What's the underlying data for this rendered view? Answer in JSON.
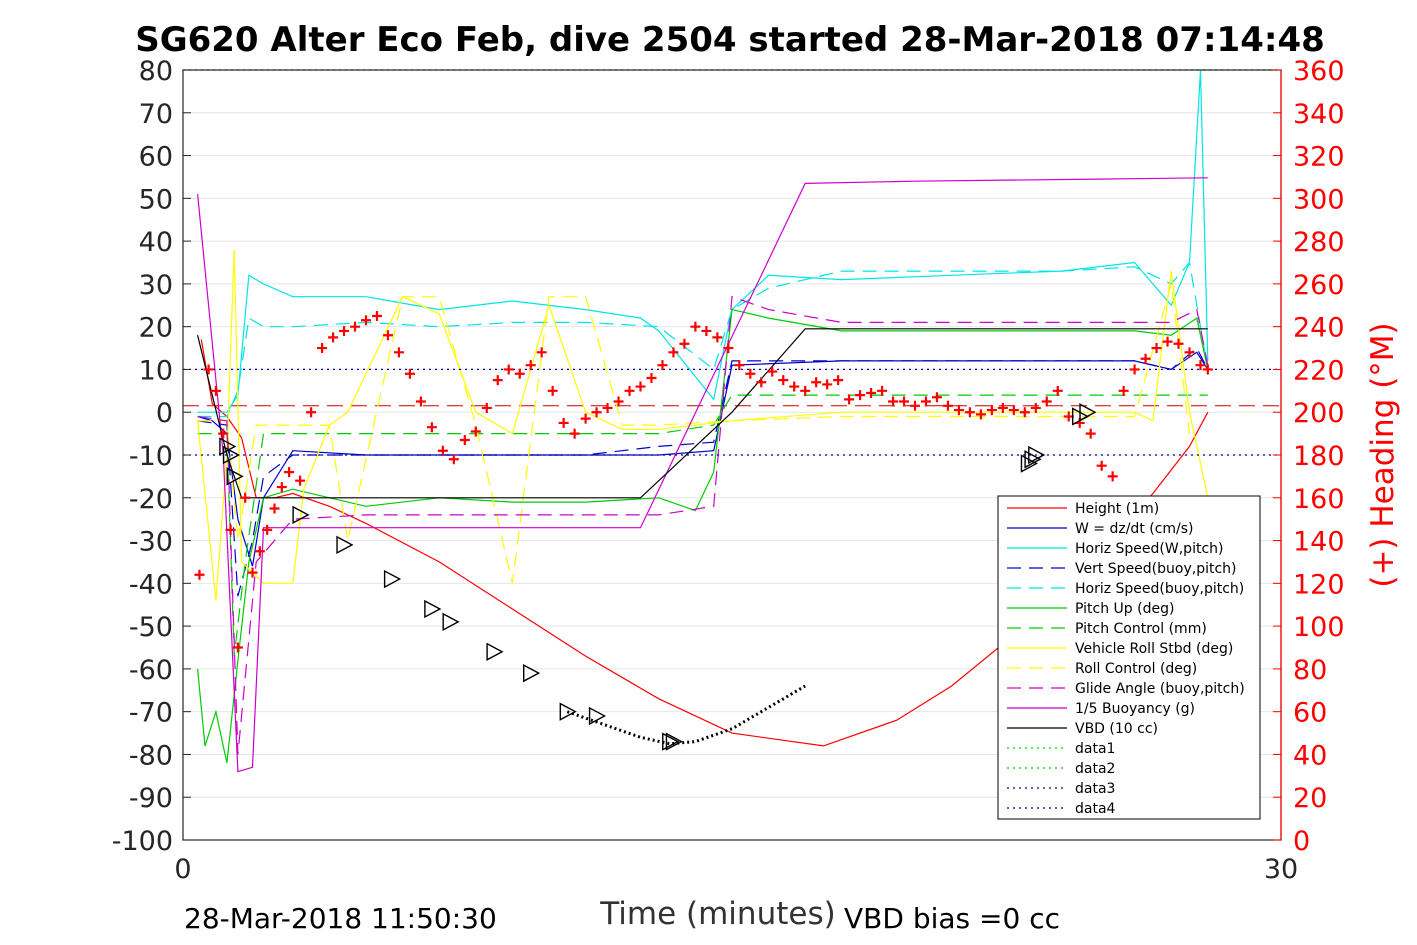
{
  "chart_data": {
    "type": "line",
    "title": "SG620 Alter Eco Feb, dive 2504 started 28-Mar-2018 07:14:48",
    "xlabel": "Time (minutes)",
    "ylabel": "",
    "ylabel_right": "(+) Heading (°M)",
    "xlim": [
      0,
      30
    ],
    "ylim": [
      -100,
      80
    ],
    "ylim_right": [
      0,
      360
    ],
    "x_ticks": [
      "0",
      "30"
    ],
    "y_ticks": [
      "80",
      "70",
      "60",
      "50",
      "40",
      "30",
      "20",
      "10",
      "0",
      "-10",
      "-20",
      "-30",
      "-40",
      "-50",
      "-60",
      "-70",
      "-80",
      "-90",
      "-100"
    ],
    "y_right_ticks": [
      "360",
      "340",
      "320",
      "300",
      "280",
      "260",
      "240",
      "220",
      "200",
      "180",
      "160",
      "140",
      "120",
      "100",
      "80",
      "60",
      "40",
      "20",
      "0"
    ],
    "grid": true,
    "legend_position": "lower-right",
    "footer_left": "28-Mar-2018 11:50:30",
    "footer_right": "VBD bias =0 cc",
    "colors": {
      "heading": "#ff0000",
      "right_axis": "#ff0000"
    },
    "series": [
      {
        "name": "Height (1m)",
        "color": "#ff0000",
        "style": "solid",
        "x": [
          0.5,
          0.8,
          1.2,
          1.6,
          2.0,
          2.5,
          3.0,
          4.0,
          5.0,
          7.0,
          9.0,
          11.0,
          13.0,
          15.0,
          17.5,
          19.5,
          21.0,
          23.0,
          25.0,
          26.5,
          27.5,
          28.0
        ],
        "y": [
          17,
          2,
          -1,
          -6,
          -20,
          -20,
          -19,
          -22,
          -26,
          -35,
          -46,
          -57,
          -67,
          -75,
          -78,
          -72,
          -64,
          -50,
          -33,
          -19,
          -8,
          0
        ]
      },
      {
        "name": "W = dz/dt (cm/s)",
        "color": "#0000cc",
        "style": "solid",
        "x": [
          0.4,
          0.8,
          1.2,
          1.5,
          1.9,
          2.2,
          3.0,
          5.0,
          7.0,
          9.0,
          11.0,
          13.0,
          14.5,
          15.0,
          18.0,
          21.0,
          24.0,
          26.0,
          27.0,
          27.7,
          28.0
        ],
        "y": [
          -1,
          -2,
          -5,
          -25,
          -36,
          -20,
          -9,
          -10,
          -10,
          -10,
          -10,
          -10,
          -9,
          11,
          12,
          12,
          12,
          12,
          10,
          14,
          10
        ]
      },
      {
        "name": "Horiz Speed(W,pitch)",
        "color": "#00e5e5",
        "style": "solid",
        "x": [
          0.4,
          1.2,
          1.5,
          1.8,
          2.2,
          3.0,
          5.0,
          7.0,
          9.0,
          11.0,
          12.5,
          13.0,
          14.5,
          15.0,
          16.0,
          18.0,
          21.0,
          24.0,
          26.0,
          27.0,
          27.5,
          27.8,
          28.0
        ],
        "y": [
          0,
          0,
          4,
          32,
          30,
          27,
          27,
          24,
          26,
          24,
          22,
          19,
          3,
          24,
          32,
          31,
          32,
          33,
          35,
          25,
          35,
          80,
          12
        ]
      },
      {
        "name": "Vert Speed(buoy,pitch)",
        "color": "#0000cc",
        "style": "dashed",
        "x": [
          0.4,
          1.2,
          1.5,
          1.9,
          2.2,
          3.0,
          5.0,
          7.0,
          9.0,
          11.0,
          13.0,
          14.5,
          15.0,
          18.0,
          21.0,
          24.0,
          26.0,
          27.0,
          27.7,
          28.0
        ],
        "y": [
          -2,
          -3,
          -43,
          -30,
          -15,
          -10,
          -10,
          -10,
          -10,
          -10,
          -8,
          -7,
          12,
          12,
          12,
          12,
          12,
          10,
          15,
          10
        ]
      },
      {
        "name": "Horiz Speed(buoy,pitch)",
        "color": "#00e5e5",
        "style": "dashed",
        "x": [
          0.4,
          1.2,
          1.5,
          1.8,
          2.2,
          3.0,
          5.0,
          7.0,
          9.0,
          11.0,
          13.0,
          14.5,
          15.0,
          16.0,
          18.0,
          21.0,
          24.0,
          26.0,
          27.0,
          27.5,
          28.0
        ],
        "y": [
          -1,
          -1,
          5,
          22,
          20,
          20,
          21,
          20,
          21,
          21,
          20,
          10,
          24,
          29,
          33,
          33,
          33,
          34,
          30,
          35,
          10
        ]
      },
      {
        "name": "Pitch Up (deg)",
        "color": "#00cc00",
        "style": "solid",
        "x": [
          0.4,
          0.6,
          0.9,
          1.2,
          1.5,
          1.8,
          2.2,
          3.0,
          5.0,
          7.0,
          9.0,
          11.0,
          13.0,
          14.0,
          14.5,
          15.0,
          16.0,
          18.0,
          21.0,
          24.0,
          26.0,
          27.0,
          27.7,
          28.0
        ],
        "y": [
          -60,
          -78,
          -70,
          -82,
          -58,
          -35,
          -20,
          -18,
          -22,
          -20,
          -21,
          -21,
          -20,
          -23,
          -14,
          24,
          22,
          19,
          19,
          19,
          19,
          18,
          22,
          10
        ]
      },
      {
        "name": "Pitch Control (mm)",
        "color": "#00cc00",
        "style": "dashed",
        "x": [
          0.4,
          1.2,
          1.4,
          1.7,
          2.2,
          3.0,
          5.0,
          7.0,
          9.0,
          11.0,
          13.0,
          14.5,
          15.0,
          18.0,
          21.0,
          24.0,
          26.0,
          27.0,
          28.0
        ],
        "y": [
          -5,
          -5,
          -57,
          -35,
          -5,
          -5,
          -5,
          -5,
          -5,
          -5,
          -5,
          -3,
          4,
          4,
          4,
          4,
          4,
          4,
          4
        ]
      },
      {
        "name": "Vehicle Roll Stbd (deg)",
        "color": "#ffff00",
        "style": "solid",
        "x": [
          0.4,
          0.9,
          1.2,
          1.4,
          1.6,
          2.2,
          3.0,
          3.3,
          4.0,
          4.5,
          6.0,
          7.0,
          8.0,
          9.0,
          10.0,
          11.0,
          12.0,
          13.0,
          15.0,
          18.0,
          21.0,
          24.0,
          26.0,
          26.5,
          27.0,
          27.5,
          28.0
        ],
        "y": [
          -2,
          -44,
          -10,
          38,
          -35,
          -40,
          -40,
          -18,
          -3,
          0,
          27,
          23,
          0,
          -5,
          25,
          0,
          -4,
          -4,
          -2,
          0,
          0,
          0,
          0,
          -2,
          33,
          0,
          -20
        ]
      },
      {
        "name": "Roll Control (deg)",
        "color": "#ffff00",
        "style": "dashed",
        "x": [
          0.4,
          1.2,
          1.5,
          2.0,
          3.0,
          4.0,
          4.5,
          6.0,
          7.0,
          8.0,
          9.0,
          10.0,
          11.0,
          12.0,
          13.0,
          15.0,
          18.0,
          21.0,
          24.0,
          26.0,
          27.0,
          27.5
        ],
        "y": [
          -2,
          -2,
          -30,
          -3,
          -3,
          -3,
          -30,
          27,
          27,
          -3,
          -40,
          27,
          27,
          -3,
          -3,
          -2,
          -1,
          -1,
          -1,
          -1,
          30,
          -5
        ]
      },
      {
        "name": "Glide Angle (buoy,pitch)",
        "color": "#cc00cc",
        "style": "dashed",
        "x": [
          0.4,
          1.2,
          1.5,
          2.0,
          3.0,
          5.0,
          7.0,
          9.0,
          11.0,
          13.0,
          14.5,
          15.0,
          16.0,
          18.0,
          21.0,
          24.0,
          26.0,
          27.0,
          27.7,
          28.0
        ],
        "y": [
          -1,
          -2,
          -80,
          -35,
          -25,
          -24,
          -24,
          -24,
          -24,
          -24,
          -22,
          27,
          24,
          21,
          21,
          21,
          21,
          21,
          24,
          11
        ]
      },
      {
        "name": "1/5 Buoyancy (g)",
        "color": "#cc00cc",
        "style": "solid",
        "x": [
          0.4,
          1.1,
          1.5,
          1.9,
          2.2,
          3.0,
          11.0,
          12.5,
          17.0,
          20.0,
          25.0,
          28.0
        ],
        "y": [
          51,
          -10,
          -84,
          -83,
          -27,
          -27,
          -27,
          -27,
          53.5,
          54,
          54.5,
          54.8
        ]
      },
      {
        "name": "VBD (10 cc)",
        "color": "#000000",
        "style": "solid",
        "x": [
          0.4,
          1.2,
          1.6,
          2.0,
          3.0,
          11.0,
          12.5,
          13.5,
          15.0,
          17.0,
          20.0,
          25.0,
          28.0
        ],
        "y": [
          18,
          -10,
          -20,
          -20,
          -20,
          -20,
          -20,
          -12,
          0,
          19.5,
          19.5,
          19.5,
          19.5
        ]
      },
      {
        "name": "data1",
        "color": "#00cc00",
        "style": "dotted",
        "x": [
          0,
          30
        ],
        "y": [
          80,
          80
        ]
      },
      {
        "name": "data2",
        "color": "#00cc00",
        "style": "dotted",
        "x": [
          0,
          30
        ],
        "y": [
          80,
          80
        ]
      },
      {
        "name": "data3",
        "color": "#000099",
        "style": "dotted",
        "x": [
          0,
          30
        ],
        "y": [
          10,
          10
        ]
      },
      {
        "name": "data4",
        "color": "#000099",
        "style": "dotted",
        "x": [
          0,
          30
        ],
        "y": [
          -10,
          -10
        ]
      }
    ],
    "reference_line": {
      "color": "#cc0000",
      "style": "dashed",
      "y": 1.5
    },
    "overlay": {
      "color": "#000000",
      "style": "dotted",
      "x": [
        10.5,
        11.5,
        12.5,
        13.3,
        14.0,
        15.0,
        16.0,
        17.0
      ],
      "y": [
        -70,
        -73,
        -76,
        -77.5,
        -77,
        -74,
        -69,
        -64
      ]
    },
    "heading": {
      "color": "#ff0000",
      "marker": "+",
      "axis": "right",
      "x": [
        0.45,
        0.7,
        0.9,
        1.1,
        1.3,
        1.5,
        1.7,
        1.9,
        2.1,
        2.3,
        2.5,
        2.7,
        2.9,
        3.2,
        3.5,
        3.8,
        4.1,
        4.4,
        4.7,
        5.0,
        5.3,
        5.6,
        5.9,
        6.2,
        6.5,
        6.8,
        7.1,
        7.4,
        7.7,
        8.0,
        8.3,
        8.6,
        8.9,
        9.2,
        9.5,
        9.8,
        10.1,
        10.4,
        10.7,
        11.0,
        11.3,
        11.6,
        11.9,
        12.2,
        12.5,
        12.8,
        13.1,
        13.4,
        13.7,
        14.0,
        14.3,
        14.6,
        14.9,
        15.2,
        15.5,
        15.8,
        16.1,
        16.4,
        16.7,
        17.0,
        17.3,
        17.6,
        17.9,
        18.2,
        18.5,
        18.8,
        19.1,
        19.4,
        19.7,
        20.0,
        20.3,
        20.6,
        20.9,
        21.2,
        21.5,
        21.8,
        22.1,
        22.4,
        22.7,
        23.0,
        23.3,
        23.6,
        23.9,
        24.2,
        24.5,
        24.8,
        25.1,
        25.4,
        25.7,
        26.0,
        26.3,
        26.6,
        26.9,
        27.2,
        27.5,
        27.8,
        28.0
      ],
      "y": [
        124,
        220,
        210,
        190,
        145,
        90,
        160,
        125,
        135,
        145,
        155,
        165,
        172,
        168,
        200,
        230,
        235,
        238,
        240,
        243,
        245,
        236,
        228,
        218,
        205,
        193,
        182,
        178,
        187,
        191,
        202,
        215,
        220,
        218,
        222,
        228,
        210,
        195,
        190,
        197,
        200,
        202,
        205,
        210,
        212,
        216,
        222,
        228,
        232,
        240,
        238,
        235,
        230,
        222,
        218,
        214,
        219,
        215,
        212,
        210,
        214,
        213,
        215,
        206,
        208,
        209,
        210,
        205,
        205,
        203,
        205,
        207,
        203,
        201,
        200,
        199,
        201,
        202,
        201,
        200,
        202,
        205,
        210,
        198,
        195,
        190,
        175,
        170,
        210,
        220,
        225,
        230,
        233,
        232,
        228,
        222,
        220
      ]
    },
    "markers": {
      "symbol": "triangle",
      "x": [
        1.2,
        1.3,
        1.4,
        3.2,
        4.4,
        5.7,
        6.8,
        7.3,
        8.5,
        9.5,
        10.5,
        11.3,
        13.3,
        13.4,
        23.1,
        23.2,
        23.3,
        24.5,
        24.7
      ],
      "y": [
        -8,
        -10,
        -15,
        -24,
        -31,
        -39,
        -46,
        -49,
        -56,
        -61,
        -70,
        -71,
        -77,
        -77,
        -12,
        -11,
        -10,
        -1,
        0
      ]
    }
  }
}
